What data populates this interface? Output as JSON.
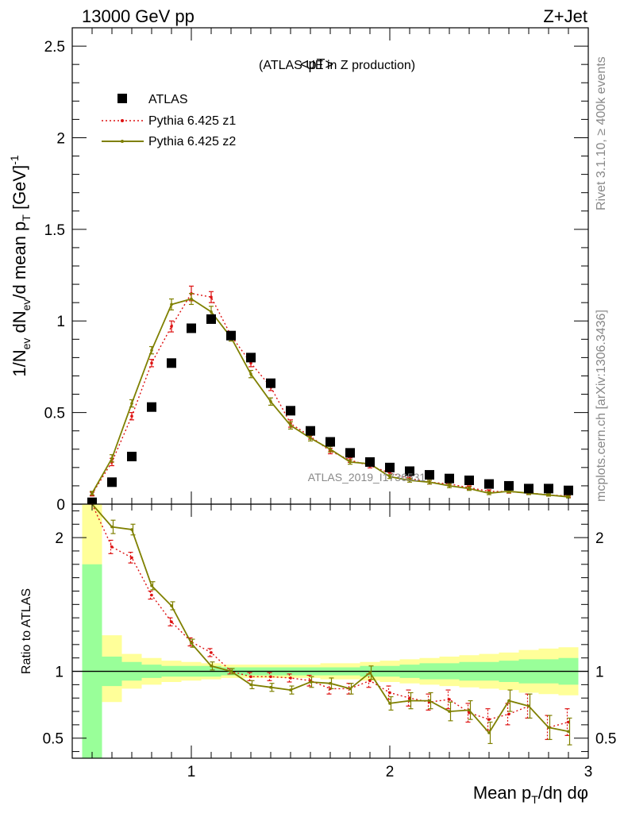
{
  "header": {
    "energy": "13000 GeV pp",
    "process": "Z+Jet"
  },
  "side_labels": {
    "rivet": "Rivet 3.1.10, ≥ 400k events",
    "source": "mcplots.cern.ch [arXiv:1306.3436]"
  },
  "watermark": "ATLAS_2019_I1736531",
  "colors": {
    "data": "#000000",
    "z1": "#dd1111",
    "z2": "#7f8000",
    "band_inner": "#99ff99",
    "band_outer": "#ffff99"
  },
  "chart_data": [
    {
      "type": "scatter",
      "title_main": "<pT>",
      "title_sub": "(ATLAS UE in Z production)",
      "ylabel": "1/N_ev dN_ev/d mean p_T [GeV]^-1",
      "xlim": [
        0.4,
        3.0
      ],
      "ylim": [
        0,
        2.6
      ],
      "yticks": [
        "0",
        "0.5",
        "1",
        "1.5",
        "2",
        "2.5"
      ],
      "legend": {
        "position": "top-left",
        "entries": [
          "ATLAS",
          "Pythia 6.425 z1",
          "Pythia 6.425 z2"
        ]
      },
      "x": [
        0.5,
        0.6,
        0.7,
        0.8,
        0.9,
        1.0,
        1.1,
        1.2,
        1.3,
        1.4,
        1.5,
        1.6,
        1.7,
        1.8,
        1.9,
        2.0,
        2.1,
        2.2,
        2.3,
        2.4,
        2.5,
        2.6,
        2.7,
        2.8,
        2.9
      ],
      "series": [
        {
          "name": "ATLAS",
          "style": "markers",
          "values": [
            0.01,
            0.12,
            0.26,
            0.53,
            0.77,
            0.96,
            1.01,
            0.92,
            0.8,
            0.66,
            0.51,
            0.4,
            0.34,
            0.28,
            0.23,
            0.2,
            0.18,
            0.16,
            0.14,
            0.13,
            0.11,
            0.1,
            0.085,
            0.085,
            0.075
          ]
        },
        {
          "name": "Pythia 6.425 z1",
          "style": "dotted",
          "values": [
            0.055,
            0.23,
            0.48,
            0.77,
            0.97,
            1.15,
            1.13,
            0.92,
            0.77,
            0.64,
            0.44,
            0.37,
            0.29,
            0.24,
            0.21,
            0.17,
            0.14,
            0.12,
            0.11,
            0.09,
            0.07,
            0.068,
            0.062,
            0.05,
            0.045
          ],
          "errors": [
            0.01,
            0.02,
            0.02,
            0.02,
            0.03,
            0.04,
            0.03,
            0.02,
            0.02,
            0.02,
            0.02,
            0.015,
            0.015,
            0.012,
            0.012,
            0.01,
            0.01,
            0.01,
            0.01,
            0.01,
            0.008,
            0.008,
            0.008,
            0.006,
            0.006
          ]
        },
        {
          "name": "Pythia 6.425 z2",
          "style": "solid",
          "values": [
            0.06,
            0.25,
            0.55,
            0.84,
            1.09,
            1.12,
            1.05,
            0.91,
            0.71,
            0.56,
            0.43,
            0.36,
            0.3,
            0.23,
            0.22,
            0.15,
            0.13,
            0.12,
            0.1,
            0.085,
            0.06,
            0.07,
            0.06,
            0.05,
            0.04
          ],
          "errors": [
            0.01,
            0.02,
            0.02,
            0.02,
            0.03,
            0.03,
            0.03,
            0.02,
            0.02,
            0.02,
            0.02,
            0.015,
            0.015,
            0.012,
            0.012,
            0.01,
            0.01,
            0.01,
            0.01,
            0.01,
            0.008,
            0.008,
            0.008,
            0.006,
            0.006
          ]
        }
      ]
    },
    {
      "type": "line",
      "ylabel": "Ratio to ATLAS",
      "xlabel": "Mean p_T/dη dφ",
      "xlim": [
        0.4,
        3.0
      ],
      "ylim": [
        0.35,
        2.25
      ],
      "xticks": [
        "1",
        "2",
        "3"
      ],
      "yticks": [
        "0.5",
        "1",
        "2"
      ],
      "reference": 1,
      "x": [
        0.5,
        0.6,
        0.7,
        0.8,
        0.9,
        1.0,
        1.1,
        1.2,
        1.3,
        1.4,
        1.5,
        1.6,
        1.7,
        1.8,
        1.9,
        2.0,
        2.1,
        2.2,
        2.3,
        2.4,
        2.5,
        2.6,
        2.7,
        2.8,
        2.9
      ],
      "band_inner": {
        "lo": [
          0.35,
          0.89,
          0.93,
          0.95,
          0.96,
          0.96,
          0.96,
          0.97,
          0.97,
          0.97,
          0.97,
          0.97,
          0.97,
          0.97,
          0.96,
          0.96,
          0.95,
          0.94,
          0.94,
          0.93,
          0.93,
          0.92,
          0.91,
          0.91,
          0.9
        ],
        "hi": [
          1.8,
          1.11,
          1.07,
          1.05,
          1.04,
          1.04,
          1.04,
          1.03,
          1.03,
          1.03,
          1.03,
          1.03,
          1.03,
          1.03,
          1.04,
          1.04,
          1.05,
          1.06,
          1.06,
          1.07,
          1.07,
          1.08,
          1.09,
          1.09,
          1.1
        ]
      },
      "band_outer": {
        "lo": [
          0.35,
          0.77,
          0.87,
          0.9,
          0.92,
          0.93,
          0.94,
          0.95,
          0.95,
          0.95,
          0.95,
          0.95,
          0.94,
          0.94,
          0.93,
          0.92,
          0.91,
          0.9,
          0.89,
          0.88,
          0.87,
          0.86,
          0.84,
          0.83,
          0.82
        ],
        "hi": [
          2.25,
          1.27,
          1.13,
          1.1,
          1.08,
          1.07,
          1.06,
          1.05,
          1.05,
          1.05,
          1.05,
          1.05,
          1.06,
          1.06,
          1.07,
          1.08,
          1.09,
          1.1,
          1.11,
          1.12,
          1.13,
          1.14,
          1.16,
          1.17,
          1.18
        ]
      },
      "series": [
        {
          "name": "Pythia 6.425 z1",
          "style": "dotted",
          "values": [
            2.7,
            1.93,
            1.85,
            1.57,
            1.37,
            1.22,
            1.14,
            1.0,
            0.96,
            0.96,
            0.95,
            0.93,
            0.87,
            0.87,
            0.93,
            0.84,
            0.8,
            0.77,
            0.79,
            0.69,
            0.64,
            0.68,
            0.74,
            0.58,
            0.62
          ],
          "errors": [
            0.3,
            0.05,
            0.04,
            0.03,
            0.03,
            0.03,
            0.03,
            0.02,
            0.03,
            0.03,
            0.03,
            0.04,
            0.04,
            0.04,
            0.05,
            0.05,
            0.06,
            0.06,
            0.07,
            0.07,
            0.08,
            0.08,
            0.09,
            0.09,
            0.1
          ]
        },
        {
          "name": "Pythia 6.425 z2",
          "style": "solid",
          "values": [
            3.0,
            2.08,
            2.06,
            1.64,
            1.49,
            1.21,
            1.04,
            1.0,
            0.9,
            0.88,
            0.86,
            0.92,
            0.91,
            0.87,
            0.99,
            0.76,
            0.78,
            0.78,
            0.7,
            0.71,
            0.54,
            0.78,
            0.74,
            0.58,
            0.55
          ],
          "errors": [
            0.3,
            0.05,
            0.04,
            0.03,
            0.03,
            0.03,
            0.03,
            0.02,
            0.03,
            0.03,
            0.03,
            0.04,
            0.04,
            0.04,
            0.05,
            0.05,
            0.06,
            0.06,
            0.07,
            0.07,
            0.08,
            0.08,
            0.09,
            0.09,
            0.1
          ]
        }
      ]
    }
  ]
}
